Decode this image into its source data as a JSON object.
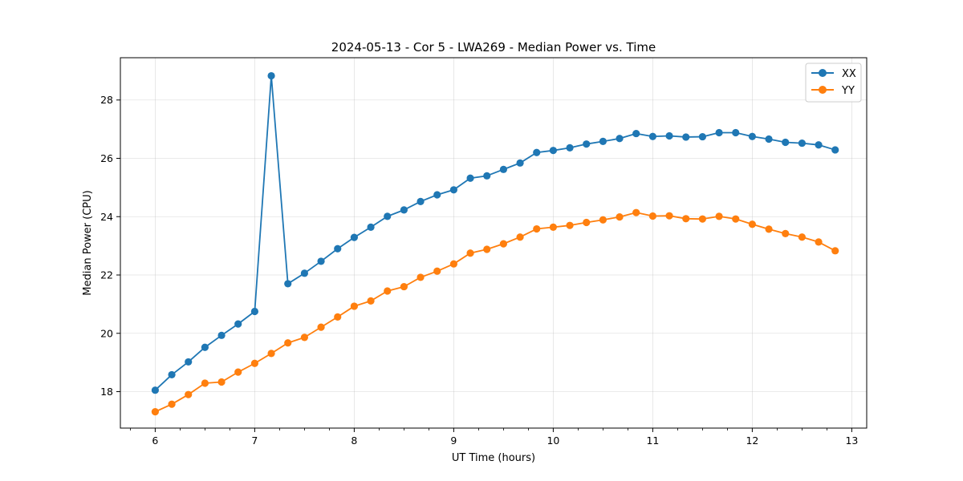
{
  "chart_data": {
    "type": "line",
    "title": "2024-05-13 - Cor 5 - LWA269 - Median Power vs. Time",
    "xlabel": "UT Time (hours)",
    "ylabel": "Median Power (CPU)",
    "xlim": [
      5.65,
      13.15
    ],
    "ylim": [
      16.75,
      29.45
    ],
    "xticks": [
      6,
      7,
      8,
      9,
      10,
      11,
      12,
      13
    ],
    "xtick_labels": [
      "6",
      "7",
      "8",
      "9",
      "10",
      "11",
      "12",
      "13"
    ],
    "yticks": [
      18,
      20,
      22,
      24,
      26,
      28
    ],
    "ytick_labels": [
      "18",
      "20",
      "22",
      "24",
      "26",
      "28"
    ],
    "x_minor_step": 0.25,
    "grid": true,
    "legend_position": "top-right",
    "x": [
      6.0,
      6.1667,
      6.3333,
      6.5,
      6.6667,
      6.8333,
      7.0,
      7.1667,
      7.3333,
      7.5,
      7.6667,
      7.8333,
      8.0,
      8.1667,
      8.3333,
      8.5,
      8.6667,
      8.8333,
      9.0,
      9.1667,
      9.3333,
      9.5,
      9.6667,
      9.8333,
      10.0,
      10.1667,
      10.3333,
      10.5,
      10.6667,
      10.8333,
      11.0,
      11.1667,
      11.3333,
      11.5,
      11.6667,
      11.8333,
      12.0,
      12.1667,
      12.3333,
      12.5,
      12.6667,
      12.8333
    ],
    "series": [
      {
        "name": "XX",
        "color": "#1f77b4",
        "values": [
          18.05,
          18.58,
          19.02,
          19.52,
          19.93,
          20.32,
          20.75,
          28.83,
          21.7,
          22.06,
          22.47,
          22.9,
          23.29,
          23.64,
          24.01,
          24.23,
          24.52,
          24.75,
          24.92,
          25.32,
          25.4,
          25.62,
          25.84,
          26.2,
          26.27,
          26.36,
          26.49,
          26.58,
          26.68,
          26.85,
          26.75,
          26.77,
          26.73,
          26.74,
          26.88,
          26.88,
          26.75,
          26.66,
          26.55,
          26.52,
          26.46,
          26.29
        ]
      },
      {
        "name": "YY",
        "color": "#ff7f0e",
        "values": [
          17.31,
          17.57,
          17.9,
          18.29,
          18.33,
          18.67,
          18.97,
          19.31,
          19.67,
          19.86,
          20.21,
          20.56,
          20.93,
          21.11,
          21.45,
          21.6,
          21.92,
          22.13,
          22.38,
          22.75,
          22.88,
          23.07,
          23.3,
          23.58,
          23.64,
          23.7,
          23.8,
          23.89,
          23.99,
          24.14,
          24.02,
          24.03,
          23.93,
          23.92,
          24.01,
          23.92,
          23.74,
          23.57,
          23.42,
          23.3,
          23.13,
          22.83
        ]
      }
    ]
  }
}
